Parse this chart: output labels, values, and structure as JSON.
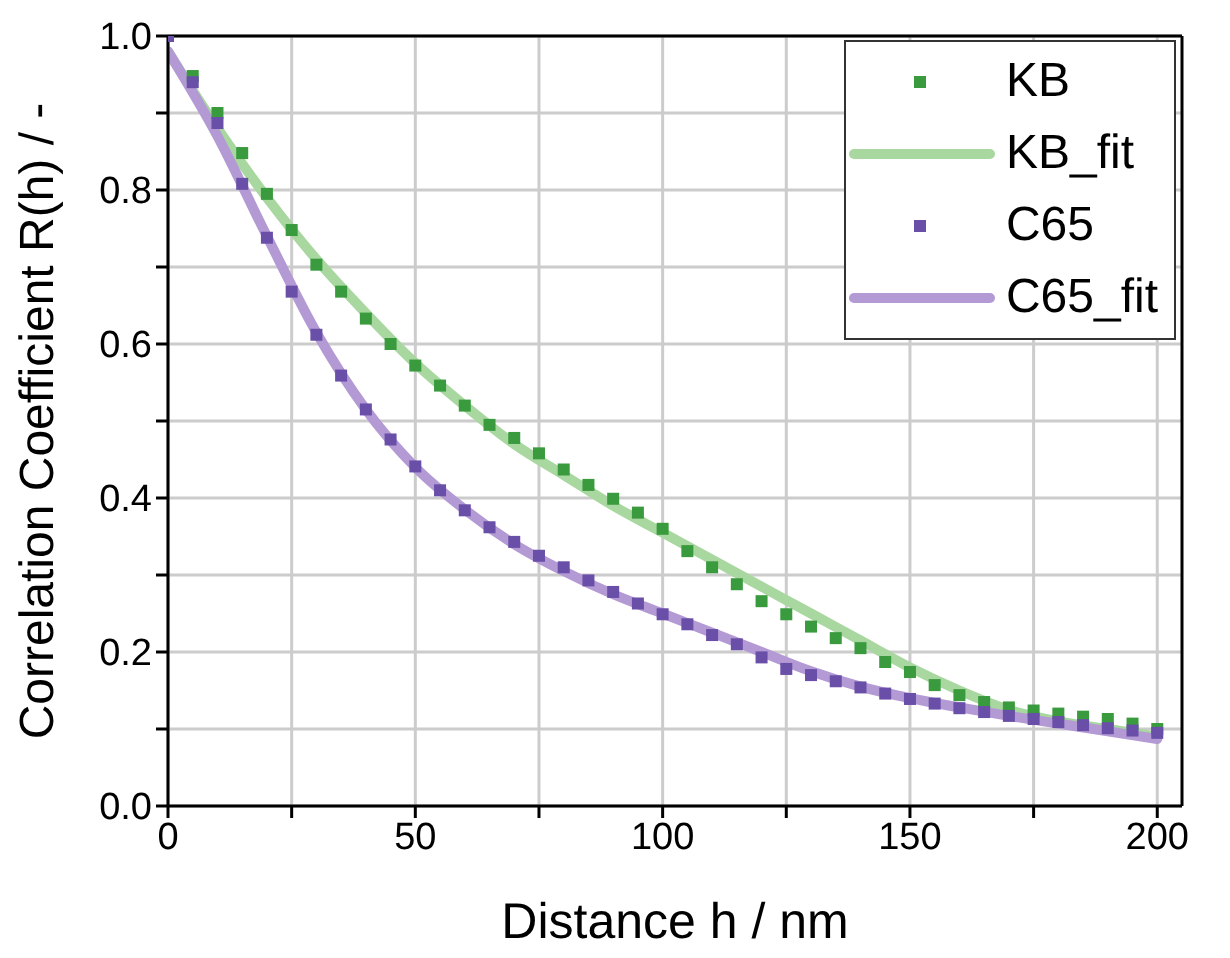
{
  "chart_data": {
    "type": "scatter",
    "xlabel": "Distance h / nm",
    "ylabel": "Correlation Coefficient R(h) / -",
    "xlim": [
      0,
      205
    ],
    "ylim": [
      0,
      1.0
    ],
    "xticks": [
      0,
      {
        "value": 25,
        "label": null
      },
      50,
      {
        "value": 75,
        "label": null
      },
      100,
      {
        "value": 125,
        "label": null
      },
      150,
      {
        "value": 175,
        "label": null
      },
      200
    ],
    "yticks": [
      {
        "value": 0,
        "label": "0.0"
      },
      {
        "value": 0.1,
        "label": null
      },
      0.2,
      {
        "value": 0.3,
        "label": null
      },
      0.4,
      {
        "value": 0.5,
        "label": null
      },
      0.6,
      {
        "value": 0.7,
        "label": null
      },
      0.8,
      {
        "value": 0.9,
        "label": null
      },
      {
        "value": 1,
        "label": "1.0"
      }
    ],
    "grid": true,
    "legend": "top right",
    "series": [
      {
        "name": "KB",
        "type": "scatter",
        "marker": "square",
        "color": "#3a9a3e",
        "x": [
          5,
          10,
          15,
          20,
          25,
          30,
          35,
          40,
          45,
          50,
          55,
          60,
          65,
          70,
          75,
          80,
          85,
          90,
          95,
          100,
          105,
          110,
          115,
          120,
          125,
          130,
          135,
          140,
          145,
          150,
          155,
          160,
          165,
          170,
          175,
          180,
          185,
          190,
          195,
          200
        ],
        "values": [
          0.948,
          0.9,
          0.848,
          0.795,
          0.748,
          0.703,
          0.668,
          0.633,
          0.6,
          0.572,
          0.546,
          0.52,
          0.495,
          0.478,
          0.458,
          0.437,
          0.417,
          0.399,
          0.381,
          0.36,
          0.331,
          0.31,
          0.288,
          0.266,
          0.249,
          0.233,
          0.218,
          0.205,
          0.187,
          0.174,
          0.157,
          0.144,
          0.135,
          0.128,
          0.124,
          0.12,
          0.116,
          0.113,
          0.107,
          0.1
        ]
      },
      {
        "name": "KB_fit",
        "type": "line",
        "color": "#a8d8a0",
        "x": [
          0,
          10,
          20,
          30,
          40,
          50,
          60,
          70,
          80,
          90,
          100,
          110,
          120,
          130,
          140,
          150,
          160,
          170,
          180,
          190,
          200
        ],
        "values": [
          0.98,
          0.88,
          0.79,
          0.71,
          0.64,
          0.575,
          0.52,
          0.47,
          0.43,
          0.39,
          0.355,
          0.32,
          0.285,
          0.25,
          0.215,
          0.18,
          0.15,
          0.125,
          0.11,
          0.1,
          0.09
        ]
      },
      {
        "name": "C65",
        "type": "scatter",
        "marker": "square",
        "color": "#6a4fa8",
        "x": [
          0,
          5,
          10,
          15,
          20,
          25,
          30,
          35,
          40,
          45,
          50,
          55,
          60,
          65,
          70,
          75,
          80,
          85,
          90,
          95,
          100,
          105,
          110,
          115,
          120,
          125,
          130,
          135,
          140,
          145,
          150,
          155,
          160,
          165,
          170,
          175,
          180,
          185,
          190,
          195,
          200
        ],
        "values": [
          1.0,
          0.94,
          0.887,
          0.808,
          0.738,
          0.668,
          0.612,
          0.559,
          0.515,
          0.476,
          0.441,
          0.41,
          0.384,
          0.362,
          0.343,
          0.325,
          0.31,
          0.293,
          0.278,
          0.263,
          0.249,
          0.236,
          0.222,
          0.21,
          0.193,
          0.178,
          0.17,
          0.162,
          0.154,
          0.146,
          0.139,
          0.133,
          0.127,
          0.122,
          0.117,
          0.113,
          0.109,
          0.105,
          0.101,
          0.098,
          0.095
        ]
      },
      {
        "name": "C65_fit",
        "type": "line",
        "color": "#b49ad4",
        "x": [
          0,
          10,
          20,
          30,
          40,
          50,
          60,
          70,
          80,
          90,
          100,
          110,
          120,
          130,
          140,
          150,
          160,
          170,
          180,
          190,
          200
        ],
        "values": [
          0.98,
          0.87,
          0.74,
          0.615,
          0.515,
          0.44,
          0.385,
          0.34,
          0.305,
          0.275,
          0.25,
          0.225,
          0.2,
          0.175,
          0.155,
          0.14,
          0.128,
          0.117,
          0.107,
          0.097,
          0.087
        ]
      }
    ]
  }
}
